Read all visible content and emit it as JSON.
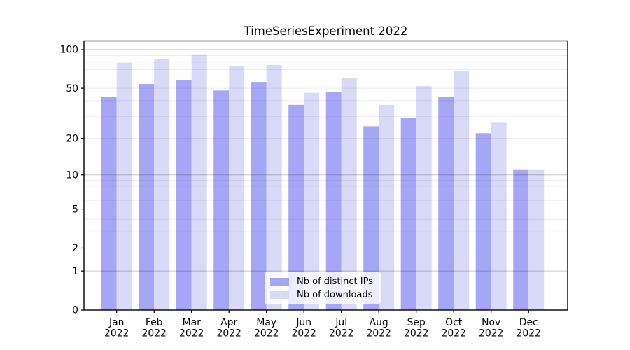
{
  "chart_data": {
    "type": "bar",
    "title": "TimeSeriesExperiment 2022",
    "categories": [
      "Jan",
      "Feb",
      "Mar",
      "Apr",
      "May",
      "Jun",
      "Jul",
      "Aug",
      "Sep",
      "Oct",
      "Nov",
      "Dec"
    ],
    "category_year": "2022",
    "series": [
      {
        "name": "Nb of distinct IPs",
        "color": "#a6a6f6",
        "values": [
          43,
          54,
          58,
          48,
          56,
          37,
          47,
          25,
          29,
          43,
          22,
          11
        ]
      },
      {
        "name": "Nb of downloads",
        "color": "#d9d9f8",
        "values": [
          79,
          85,
          92,
          74,
          76,
          46,
          60,
          37,
          52,
          68,
          27,
          11
        ]
      }
    ],
    "yscale": "log1p",
    "yticks": [
      0,
      1,
      2,
      5,
      10,
      20,
      50,
      100
    ],
    "major_grid_values": [
      1,
      10,
      100
    ],
    "minor_grid_values": [
      2,
      3,
      4,
      5,
      6,
      7,
      8,
      9,
      20,
      30,
      40,
      50,
      60,
      70,
      80,
      90
    ],
    "ylim": [
      0,
      117
    ],
    "grid": "horizontal",
    "legend_position": "bottom-center",
    "colors": {
      "spine": "#000000",
      "tick_label": "#000000",
      "major_grid": "rgba(0,0,0,0.22)",
      "minor_grid": "rgba(0,0,0,0.07)",
      "background": "#ffffff"
    }
  }
}
